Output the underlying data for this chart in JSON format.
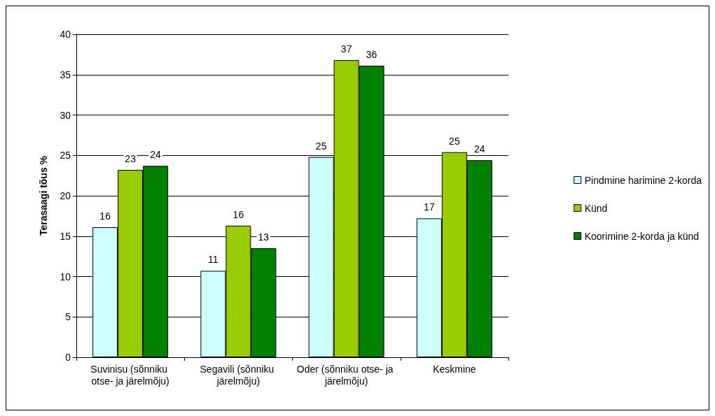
{
  "chart_data": {
    "type": "bar",
    "ylabel": "Terasaagi tõus %",
    "categories": [
      "Suvinisu (sõnniku otse- ja järelmõju)",
      "Segavili (sõnniku järelmõju)",
      "Oder (sõnniku otse- ja järelmõju)",
      "Keskmine"
    ],
    "series": [
      {
        "name": "Pindmine harimine 2-korda",
        "color": "#ccffff",
        "values": [
          16.1,
          10.7,
          24.8,
          17.2
        ],
        "value_labels": [
          "16",
          "11",
          "25",
          "17"
        ]
      },
      {
        "name": "Künd",
        "color": "#99cc00",
        "values": [
          23.2,
          16.3,
          36.8,
          25.4
        ],
        "value_labels": [
          "23",
          "16",
          "37",
          "25"
        ]
      },
      {
        "name": "Koorimine 2-korda ja künd",
        "color": "#008000",
        "values": [
          23.7,
          13.5,
          36.1,
          24.4
        ],
        "value_labels": [
          "24",
          "13",
          "36",
          "24"
        ]
      }
    ],
    "ylim": [
      0,
      40
    ],
    "yticks": [
      0,
      5,
      10,
      15,
      20,
      25,
      30,
      35,
      40
    ],
    "grid": "y",
    "legend": "right"
  }
}
